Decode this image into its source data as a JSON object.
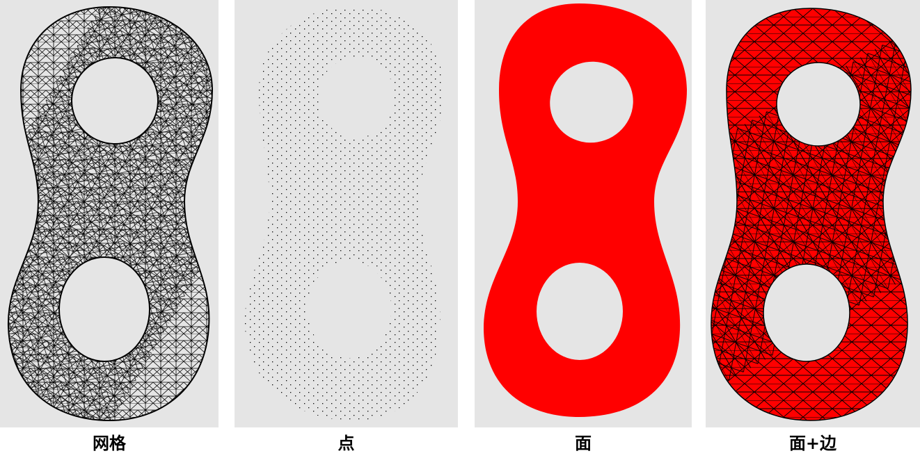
{
  "colors": {
    "background": "#e5e5e5",
    "mesh_line": "#000000",
    "face_fill": "#ff0000"
  },
  "panels": [
    {
      "id": "wireframe",
      "caption": "网格",
      "render_mode": "wireframe"
    },
    {
      "id": "points",
      "caption": "点",
      "render_mode": "points"
    },
    {
      "id": "faces",
      "caption": "面",
      "render_mode": "faces"
    },
    {
      "id": "faces-edges",
      "caption": "面+边",
      "render_mode": "faces-edges"
    }
  ]
}
